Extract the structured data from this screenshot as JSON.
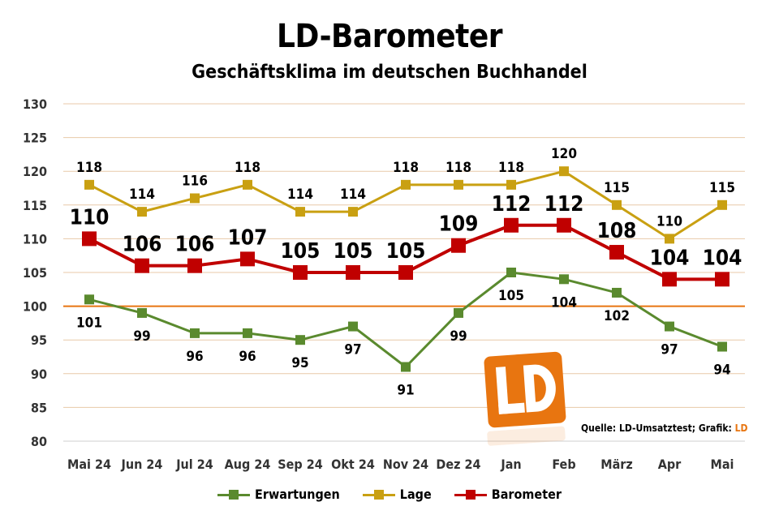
{
  "title": "LD-Barometer",
  "subtitle": "Geschäftsklima im deutschen Buchhandel",
  "source": {
    "text": "Quelle: LD-Umsatztest; Grafik: ",
    "brand": "LD"
  },
  "logo_text": "LD",
  "colors": {
    "erwartungen": "#5a8a2e",
    "lage": "#c9a012",
    "barometer": "#c00000",
    "grid": "#e8c9a8",
    "baseline": "#e87510",
    "logo": "#e87510"
  },
  "chart_data": {
    "type": "line",
    "title": "LD-Barometer",
    "subtitle": "Geschäftsklima im deutschen Buchhandel",
    "categories": [
      "Mai 24",
      "Jun 24",
      "Jul 24",
      "Aug 24",
      "Sep 24",
      "Okt 24",
      "Nov 24",
      "Dez 24",
      "Jan",
      "Feb",
      "März",
      "Apr",
      "Mai"
    ],
    "ylim": [
      80,
      130
    ],
    "yticks": [
      80,
      85,
      90,
      95,
      100,
      105,
      110,
      115,
      120,
      125,
      130
    ],
    "reference_line": 100,
    "grid": true,
    "legend_position": "bottom",
    "series": [
      {
        "name": "Erwartungen",
        "color": "#5a8a2e",
        "label_position": "below",
        "values": [
          101,
          99,
          96,
          96,
          95,
          97,
          91,
          99,
          105,
          104,
          102,
          97,
          94
        ]
      },
      {
        "name": "Lage",
        "color": "#c9a012",
        "label_position": "above",
        "values": [
          118,
          114,
          116,
          118,
          114,
          114,
          118,
          118,
          118,
          120,
          115,
          110,
          115
        ]
      },
      {
        "name": "Barometer",
        "color": "#c00000",
        "label_position": "above",
        "values": [
          110,
          106,
          106,
          107,
          105,
          105,
          105,
          109,
          112,
          112,
          108,
          104,
          104
        ]
      }
    ]
  }
}
